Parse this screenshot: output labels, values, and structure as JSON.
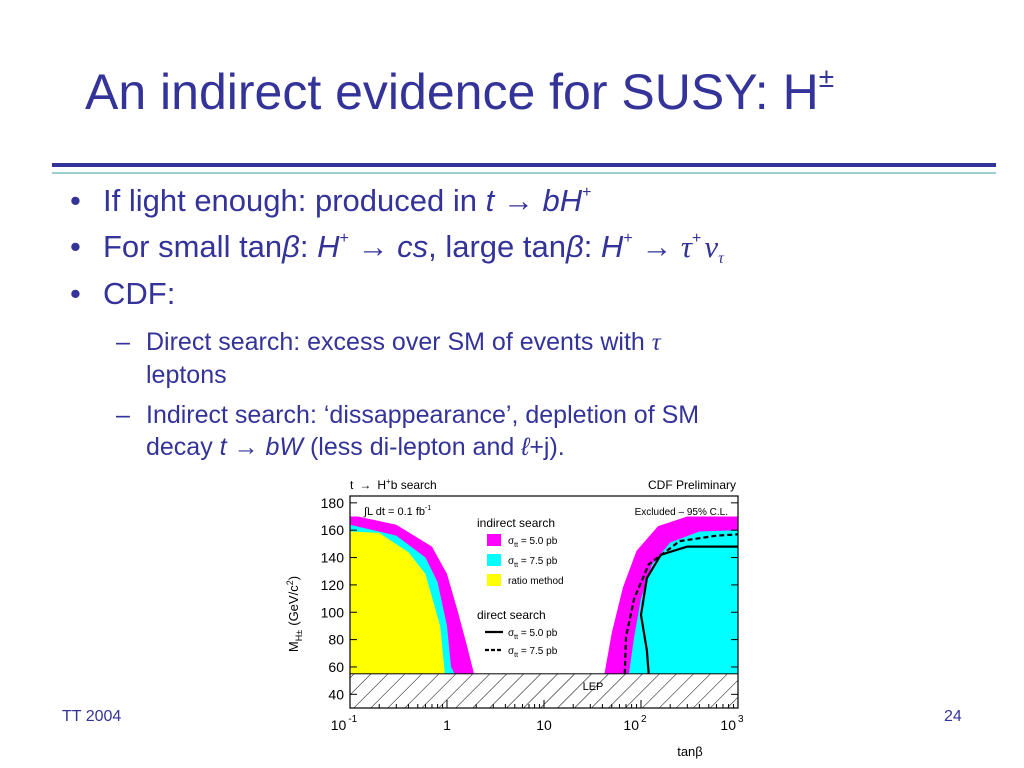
{
  "slide": {
    "title": "An indirect evidence for SUSY: H",
    "title_sup": "±",
    "bullets": [
      {
        "prefix": "If light enough: produced in ",
        "math_t": "t",
        "arrow": " → ",
        "math_bh": "bH",
        "sup": "+"
      },
      {
        "prefix": "For small tan",
        "beta1": "β",
        "colon1": ": ",
        "h1": "H",
        "h1_sup": "+",
        "arrow1": " → ",
        "cs": "cs",
        "mid": ", large tan",
        "beta2": "β",
        "colon2": ": ",
        "h2": "H",
        "h2_sup": "+",
        "arrow2": " → ",
        "tau": "τ",
        "tau_sup": "+",
        "nu": "ν",
        "nu_sub": "τ"
      },
      {
        "text": "CDF:"
      }
    ],
    "sub_bullets": [
      {
        "line1": "Direct search: excess over SM of events with ",
        "tau": "τ",
        "line2": "leptons"
      },
      {
        "line1": "Indirect search: ‘dissappearance’, depletion of SM",
        "line2_prefix": "decay ",
        "t": "t",
        "arrow": " → ",
        "bw": "bW",
        "line2_mid": " (less di-lepton and ",
        "ell": "ℓ",
        "line2_end": "+j)."
      }
    ],
    "bullet_char": "•",
    "dash_char": "–",
    "footer_left": "TT 2004",
    "page_number": "24"
  },
  "chart_data": {
    "type": "area",
    "title_left": "t → H⁺b search",
    "title_right": "CDF Preliminary",
    "header_left_text": "t",
    "header_arrow": "→",
    "header_mid": "H",
    "header_sup": "+",
    "header_b": "b search",
    "lumi_text": "∫L dt = 0.1 fb",
    "lumi_sup": "-1",
    "excluded_label": "Excluded – 95% C.L.",
    "ylabel_main": "M",
    "ylabel_sub": "H±",
    "ylabel_units": "(GeV/c",
    "ylabel_sup": "2",
    "ylabel_end": ")",
    "xlabel": "tanβ",
    "x_scale": "log",
    "xlim": [
      0.1,
      1000
    ],
    "ylim": [
      30,
      185
    ],
    "y_ticks": [
      "40",
      "60",
      "80",
      "100",
      "120",
      "140",
      "160",
      "180"
    ],
    "x_ticks": [
      {
        "base": "10",
        "exp": "-1"
      },
      {
        "base": "1",
        "exp": ""
      },
      {
        "base": "10",
        "exp": ""
      },
      {
        "base": "10",
        "exp": "2"
      },
      {
        "base": "10",
        "exp": "3"
      }
    ],
    "lep_label": "LEP",
    "lep_limit": 55,
    "legend": {
      "indirect_title": "indirect search",
      "direct_title": "direct search",
      "entries": [
        {
          "label": "σ",
          "sub": "tt",
          "rest": " = 5.0 pb",
          "color": "#ff00ff"
        },
        {
          "label": "σ",
          "sub": "tt",
          "rest": " = 7.5 pb",
          "color": "#00ffff"
        },
        {
          "label": "ratio method",
          "sub": "",
          "rest": "",
          "color": "#ffff00"
        }
      ],
      "direct_entries": [
        {
          "label": "σ",
          "sub": "tt",
          "rest": " = 5.0 pb",
          "style": "solid"
        },
        {
          "label": "σ",
          "sub": "tt",
          "rest": " = 7.5 pb",
          "style": "dashed"
        }
      ]
    },
    "series": [
      {
        "name": "σtt = 5.0 pb",
        "region": "left",
        "color": "#ff00ff",
        "points": [
          [
            0.1,
            170
          ],
          [
            0.12,
            170
          ],
          [
            0.3,
            164
          ],
          [
            0.7,
            148
          ],
          [
            1.0,
            128
          ],
          [
            1.3,
            100
          ],
          [
            1.6,
            76
          ],
          [
            1.9,
            55
          ]
        ]
      },
      {
        "name": "σtt = 7.5 pb",
        "region": "left",
        "color": "#00ffff",
        "points": [
          [
            0.1,
            164
          ],
          [
            0.3,
            156
          ],
          [
            0.6,
            140
          ],
          [
            0.8,
            122
          ],
          [
            1.0,
            90
          ],
          [
            1.1,
            60
          ],
          [
            1.2,
            55
          ]
        ]
      },
      {
        "name": "ratio method",
        "region": "left",
        "color": "#ffff00",
        "points": [
          [
            0.1,
            159
          ],
          [
            0.2,
            158
          ],
          [
            0.4,
            144
          ],
          [
            0.6,
            128
          ],
          [
            0.85,
            90
          ],
          [
            0.95,
            55
          ]
        ]
      },
      {
        "name": "σtt = 5.0 pb",
        "region": "right",
        "color": "#ff00ff",
        "points": [
          [
            42,
            55
          ],
          [
            50,
            85
          ],
          [
            65,
            118
          ],
          [
            90,
            145
          ],
          [
            150,
            163
          ],
          [
            300,
            170
          ],
          [
            1000,
            170
          ]
        ]
      },
      {
        "name": "σtt = 7.5 pb",
        "region": "right",
        "color": "#00ffff",
        "points": [
          [
            75,
            55
          ],
          [
            85,
            82
          ],
          [
            100,
            110
          ],
          [
            130,
            135
          ],
          [
            200,
            151
          ],
          [
            400,
            159
          ],
          [
            1000,
            160
          ]
        ]
      },
      {
        "name": "direct σtt = 5.0 pb",
        "region": "right",
        "style": "solid",
        "points": [
          [
            120,
            55
          ],
          [
            115,
            72
          ],
          [
            100,
            98
          ],
          [
            115,
            125
          ],
          [
            160,
            142
          ],
          [
            300,
            148
          ],
          [
            1000,
            148
          ]
        ]
      },
      {
        "name": "direct σtt = 7.5 pb",
        "region": "right",
        "style": "dashed",
        "points": [
          [
            68,
            55
          ],
          [
            70,
            82
          ],
          [
            85,
            110
          ],
          [
            120,
            135
          ],
          [
            250,
            152
          ],
          [
            600,
            156
          ],
          [
            1000,
            157
          ]
        ]
      }
    ]
  }
}
